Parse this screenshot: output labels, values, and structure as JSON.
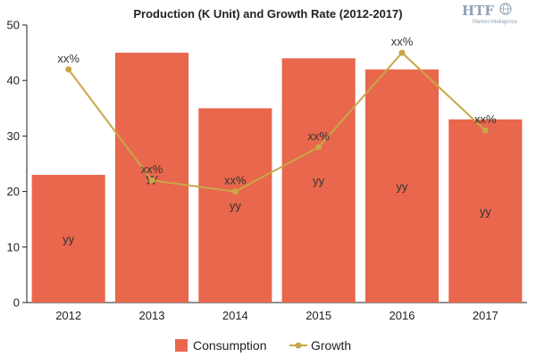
{
  "chart_data": {
    "type": "bar",
    "title": "Production (K Unit) and Growth Rate (2012-2017)",
    "categories": [
      "2012",
      "2013",
      "2014",
      "2015",
      "2016",
      "2017"
    ],
    "series": [
      {
        "name": "Consumption",
        "type": "bar",
        "color": "#e8674d",
        "values": [
          23,
          45,
          35,
          44,
          42,
          33
        ],
        "labels": [
          "yy",
          "yy",
          "yy",
          "yy",
          "yy",
          "yy"
        ]
      },
      {
        "name": "Growth",
        "type": "line",
        "color": "#c9a748",
        "values": [
          42,
          22,
          20,
          28,
          45,
          31
        ],
        "labels": [
          "xx%",
          "xx%",
          "xx%",
          "xx%",
          "xx%",
          "xx%"
        ]
      }
    ],
    "ylim": [
      0,
      50
    ],
    "yticks": [
      0,
      10,
      20,
      30,
      40,
      50
    ],
    "grid": false,
    "legend_position": "bottom"
  },
  "logo": {
    "text": "HTF",
    "subtitle": "Market Intelligence"
  }
}
